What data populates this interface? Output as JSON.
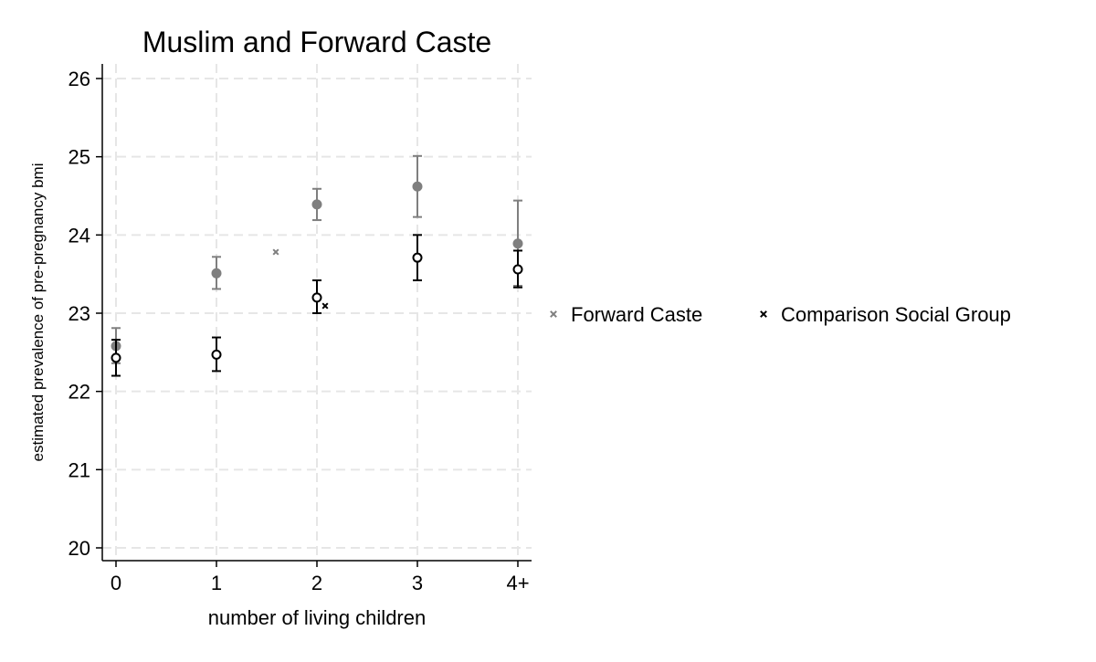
{
  "chart_data": {
    "type": "scatter",
    "title": "Muslim and Forward Caste",
    "xlabel": "number of living children",
    "ylabel": "estimated prevalence of pre-pregnancy bmi",
    "categories": [
      "0",
      "1",
      "2",
      "3",
      "4+"
    ],
    "ylim": [
      19.85,
      26.2
    ],
    "yticks": [
      20,
      21,
      22,
      23,
      24,
      25,
      26
    ],
    "grid": true,
    "legend_position": "right",
    "series": [
      {
        "name": "Forward Caste",
        "color": "#7f7f7f",
        "marker": "filled-circle",
        "values": [
          22.58,
          23.51,
          24.39,
          24.62,
          23.89
        ],
        "ci_low": [
          22.36,
          23.31,
          24.19,
          24.23,
          23.35
        ],
        "ci_high": [
          22.81,
          23.72,
          24.59,
          25.01,
          24.44
        ]
      },
      {
        "name": "Comparison Social Group",
        "color": "#000000",
        "marker": "hollow-circle",
        "values": [
          22.43,
          22.47,
          23.2,
          23.71,
          23.56
        ],
        "ci_low": [
          22.2,
          22.26,
          23.0,
          23.42,
          23.33
        ],
        "ci_high": [
          22.66,
          22.69,
          23.42,
          24.0,
          23.8
        ]
      }
    ]
  }
}
